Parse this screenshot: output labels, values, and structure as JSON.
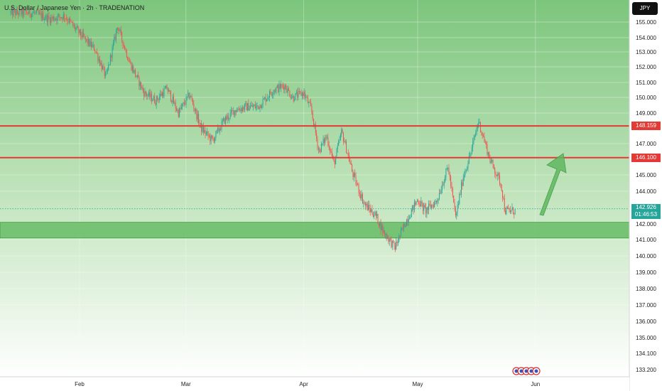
{
  "header": {
    "title": "U.S. Dollar / Japanese Yen · 2h · TRADENATION"
  },
  "currency_button": {
    "label": "JPY"
  },
  "current": {
    "price": "142.926",
    "countdown": "01:46:53"
  },
  "chart_data": {
    "type": "line",
    "title": "U.S. Dollar / Japanese Yen · 2h · TRADENATION",
    "x_ticks": [
      "Feb",
      "Mar",
      "Apr",
      "May",
      "Jun"
    ],
    "y_ticks": [
      "155.000",
      "154.000",
      "153.000",
      "152.000",
      "151.000",
      "150.000",
      "149.000",
      "147.000",
      "145.000",
      "144.000",
      "142.000",
      "141.000",
      "140.000",
      "139.000",
      "138.000",
      "137.000",
      "136.000",
      "135.000",
      "134.100",
      "133.200"
    ],
    "ylim": [
      133.2,
      155.5
    ],
    "series": [
      {
        "x": [
          "2025-01-20",
          "2025-01-24",
          "2025-01-28",
          "2025-02-02",
          "2025-02-05",
          "2025-02-08",
          "2025-02-11",
          "2025-02-14",
          "2025-02-18",
          "2025-02-21",
          "2025-02-24",
          "2025-02-27",
          "2025-03-02",
          "2025-03-05",
          "2025-03-08",
          "2025-03-11",
          "2025-03-14",
          "2025-03-17",
          "2025-03-20",
          "2025-03-24",
          "2025-03-27",
          "2025-03-29",
          "2025-04-01",
          "2025-04-03",
          "2025-04-05",
          "2025-04-07",
          "2025-04-09",
          "2025-04-11",
          "2025-04-14",
          "2025-04-17",
          "2025-04-20",
          "2025-04-22",
          "2025-04-25",
          "2025-04-28",
          "2025-05-01",
          "2025-05-03",
          "2025-05-06",
          "2025-05-09",
          "2025-05-11",
          "2025-05-13",
          "2025-05-15",
          "2025-05-17",
          "2025-05-20",
          "2025-05-23",
          "2025-05-24"
        ],
        "y": [
          155.6,
          155.2,
          155.4,
          154.0,
          153.2,
          151.3,
          154.8,
          152.4,
          150.3,
          149.8,
          150.6,
          149.0,
          150.2,
          148.0,
          147.2,
          148.5,
          149.2,
          149.4,
          149.4,
          150.5,
          150.8,
          150.0,
          150.3,
          149.2,
          146.5,
          147.5,
          145.7,
          147.8,
          145.0,
          143.2,
          142.5,
          141.5,
          140.5,
          142.2,
          143.5,
          142.8,
          143.4,
          145.5,
          142.4,
          144.9,
          146.4,
          148.5,
          146.0,
          144.4,
          142.8
        ]
      }
    ],
    "levels": [
      {
        "label": "148.159",
        "value": 148.159,
        "color": "#e53935"
      },
      {
        "label": "146.100",
        "value": 146.1,
        "color": "#e53935"
      }
    ],
    "zone": {
      "from": 141.1,
      "to": 142.1
    },
    "current_price": 142.926,
    "colors": {
      "up": "#26a69a",
      "down": "#ef5350",
      "background_top": "#7cc57c",
      "zone": "#58b558",
      "arrow": "#5fb85f"
    },
    "grid": true
  }
}
